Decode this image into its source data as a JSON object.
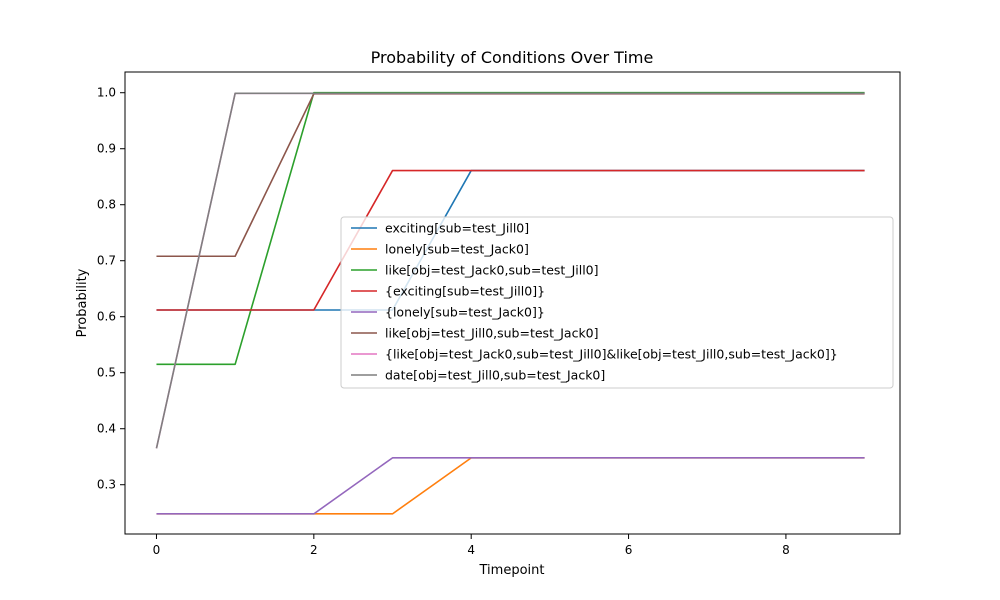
{
  "chart_data": {
    "type": "line",
    "title": "Probability of Conditions Over Time",
    "xlabel": "Timepoint",
    "ylabel": "Probability",
    "xlim": [
      -0.4,
      9.45
    ],
    "ylim": [
      0.212,
      1.037
    ],
    "xticks": [
      0,
      2,
      4,
      6,
      8
    ],
    "yticks": [
      0.3,
      0.4,
      0.5,
      0.6,
      0.7,
      0.8,
      0.9,
      1.0
    ],
    "ytick_labels": [
      "0.3",
      "0.4",
      "0.5",
      "0.6",
      "0.7",
      "0.8",
      "0.9",
      "1.0"
    ],
    "grid": false,
    "legend_position": "center-right",
    "x": [
      0,
      1,
      2,
      3,
      4,
      5,
      6,
      7,
      8,
      9
    ],
    "series": [
      {
        "name": "exciting[sub=test_Jill0]",
        "color": "#1f77b4",
        "values": [
          0.612,
          0.612,
          0.612,
          0.612,
          0.861,
          0.861,
          0.861,
          0.861,
          0.861,
          0.861
        ]
      },
      {
        "name": "lonely[sub=test_Jack0]",
        "color": "#ff7f0e",
        "values": [
          0.248,
          0.248,
          0.248,
          0.248,
          0.348,
          0.348,
          0.348,
          0.348,
          0.348,
          0.348
        ]
      },
      {
        "name": "like[obj=test_Jack0,sub=test_Jill0]",
        "color": "#2ca02c",
        "values": [
          0.515,
          0.515,
          1.0,
          1.0,
          1.0,
          1.0,
          1.0,
          1.0,
          1.0,
          1.0
        ]
      },
      {
        "name": "{exciting[sub=test_Jill0]}",
        "color": "#d62728",
        "values": [
          0.612,
          0.612,
          0.612,
          0.861,
          0.861,
          0.861,
          0.861,
          0.861,
          0.861,
          0.861
        ]
      },
      {
        "name": "{lonely[sub=test_Jack0]}",
        "color": "#9467bd",
        "values": [
          0.248,
          0.248,
          0.248,
          0.348,
          0.348,
          0.348,
          0.348,
          0.348,
          0.348,
          0.348
        ]
      },
      {
        "name": "like[obj=test_Jill0,sub=test_Jack0]",
        "color": "#8c564b",
        "values": [
          0.708,
          0.708,
          0.998,
          0.998,
          0.998,
          0.998,
          0.998,
          0.998,
          0.998,
          0.998
        ]
      },
      {
        "name": "{like[obj=test_Jack0,sub=test_Jill0]&like[obj=test_Jill0,sub=test_Jack0]}",
        "color": "#e377c2",
        "values": [
          0.365,
          0.999,
          0.999,
          0.999,
          0.999,
          0.999,
          0.999,
          0.999,
          0.999,
          0.999
        ]
      },
      {
        "name": "date[obj=test_Jill0,sub=test_Jack0]",
        "color": "#7f7f7f",
        "values": [
          0.365,
          0.999,
          0.999,
          0.999,
          0.999,
          0.999,
          0.999,
          0.999,
          0.999,
          0.999
        ]
      }
    ]
  }
}
